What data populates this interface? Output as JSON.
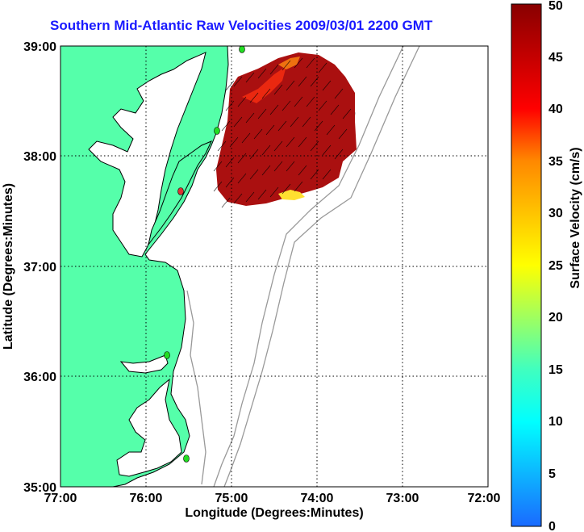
{
  "title": "Southern Mid-Atlantic Raw Velocities 2009/03/01 2200 GMT",
  "xlabel": "Longitude (Degrees:Minutes)",
  "ylabel": "Latitude (Degrees:Minutes)",
  "x_ticks": [
    "77:00",
    "76:00",
    "75:00",
    "74:00",
    "73:00",
    "72:00"
  ],
  "y_ticks": [
    "39:00",
    "38:00",
    "37:00",
    "36:00",
    "35:00"
  ],
  "colorbar": {
    "label": "Surface Velocity (cm/s)",
    "ticks": [
      "0",
      "5",
      "10",
      "15",
      "20",
      "25",
      "30",
      "35",
      "40",
      "45",
      "50"
    ],
    "range": [
      0,
      50
    ]
  },
  "colors": {
    "land": "#55ffaa",
    "water": "#ffffff",
    "coastline": "#000000",
    "bathymetry": "#999999",
    "title": "#1a1aff",
    "grid": "#000000",
    "station_marker": "#22dd22",
    "station_marker_alt": "#dd3333"
  }
}
